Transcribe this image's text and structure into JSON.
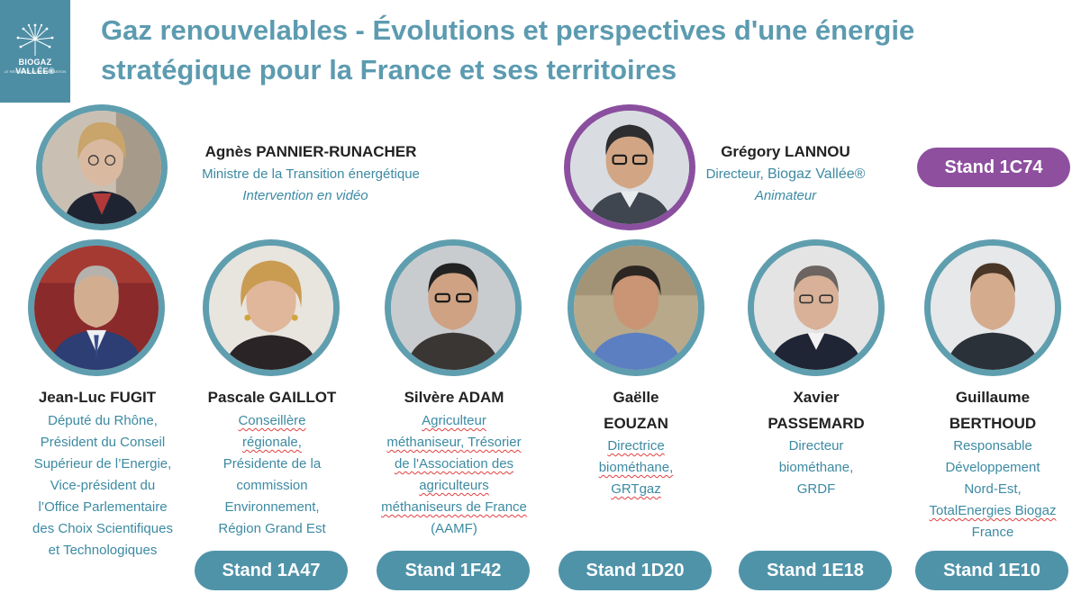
{
  "logo": {
    "text": "BIOGAZ VALLÉE®",
    "tagline": "LE RÉSEAU DE LA MÉTHANISATION"
  },
  "title": {
    "line1": "Gaz renouvelables - Évolutions et perspectives d'une énergie",
    "line2": "stratégique pour la France et ses territoires"
  },
  "top_speakers": [
    {
      "name": "Agnès PANNIER-RUNACHER",
      "role": "Ministre de la Transition énergétique",
      "note": "Intervention en vidéo"
    },
    {
      "name": "Grégory LANNOU",
      "role_prefix": "Directeur, ",
      "role_org": "Biogaz Vallée®",
      "note": "Animateur"
    }
  ],
  "moderator_stand": "Stand 1C74",
  "speakers": [
    {
      "name_lines": [
        "Jean-Luc FUGIT"
      ],
      "role_lines": [
        "Député du Rhône,",
        "Président du Conseil",
        "Supérieur de l’Energie,",
        "Vice-président du",
        "l’Office Parlementaire",
        "des Choix Scientifiques",
        "et Technologiques"
      ]
    },
    {
      "name_lines": [
        "Pascale GAILLOT"
      ],
      "role_lines": [
        "Conseillère",
        "régionale,",
        "Présidente de la",
        "commission",
        "Environnement,",
        "Région Grand Est"
      ],
      "stand": "Stand 1A47"
    },
    {
      "name_lines": [
        "Silvère ADAM"
      ],
      "role_lines": [
        "Agriculteur",
        "méthaniseur, Trésorier",
        "de l'Association des",
        "agriculteurs",
        "méthaniseurs de France",
        "(AAMF)"
      ],
      "stand": "Stand 1F42"
    },
    {
      "name_lines": [
        "Gaëlle",
        "EOUZAN"
      ],
      "role_lines": [
        "Directrice",
        "biométhane,",
        "GRTgaz"
      ],
      "stand": "Stand 1D20"
    },
    {
      "name_lines": [
        "Xavier",
        "PASSEMARD"
      ],
      "role_lines": [
        "Directeur",
        "biométhane,",
        "GRDF"
      ],
      "stand": "Stand 1E18"
    },
    {
      "name_lines": [
        "Guillaume",
        "BERTHOUD"
      ],
      "role_lines": [
        "Responsable",
        "Développement",
        "Nord-Est,",
        "TotalEnergies Biogaz",
        "France"
      ],
      "stand": "Stand 1E10"
    }
  ],
  "colors": {
    "teal": "#5f9eae",
    "title": "#5c9bb0",
    "purple": "#8b4f9f",
    "badge": "#4f93a9"
  }
}
